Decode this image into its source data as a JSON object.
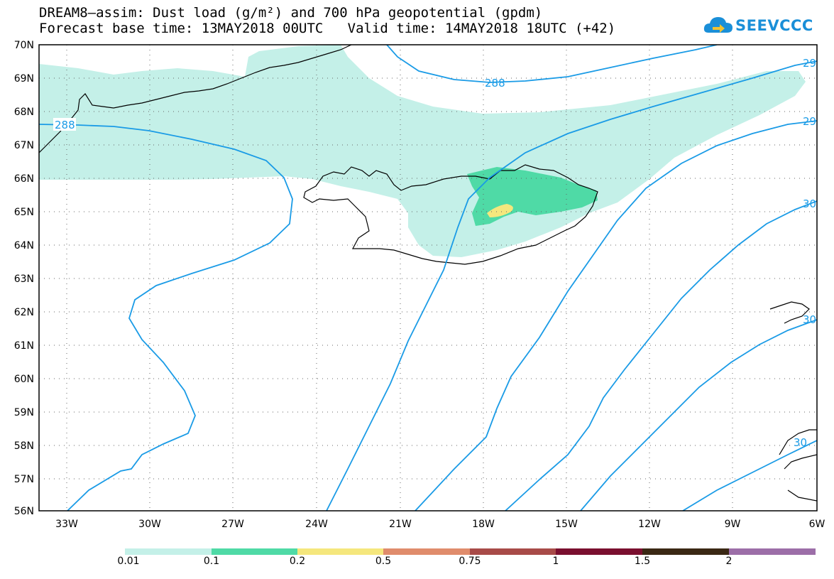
{
  "title_line1": "DREAM8–assim: Dust load (g/m²) and 700 hPa geopotential (gpdm)",
  "title_line2": "Forecast base time: 13MAY2018 00UTC   Valid time: 14MAY2018 18UTC (+42)",
  "logo_text": "SEEVCCC",
  "lat_labels": [
    "70N",
    "69N",
    "68N",
    "67N",
    "66N",
    "65N",
    "64N",
    "63N",
    "62N",
    "61N",
    "60N",
    "59N",
    "58N",
    "57N",
    "56N"
  ],
  "lon_labels": [
    "33W",
    "30W",
    "27W",
    "24W",
    "21W",
    "18W",
    "15W",
    "12W",
    "9W",
    "6W"
  ],
  "contour_labels": [
    "288",
    "288",
    "29",
    "29",
    "30",
    "30",
    "30"
  ],
  "legend": {
    "labels": [
      "0.01",
      "0.1",
      "0.2",
      "0.5",
      "0.75",
      "1",
      "1.5",
      "2"
    ],
    "colors": [
      "#c4f0e8",
      "#4fdaa6",
      "#f5e77d",
      "#e08c6c",
      "#a84b48",
      "#7a0f2f",
      "#3a2814",
      "#9c6ea8"
    ]
  },
  "colors": {
    "dust_low": "#c4f0e8",
    "dust_mid": "#4fdaa6",
    "dust_high": "#f5e77d",
    "contour": "#1a9be6",
    "coast": "#000000"
  }
}
